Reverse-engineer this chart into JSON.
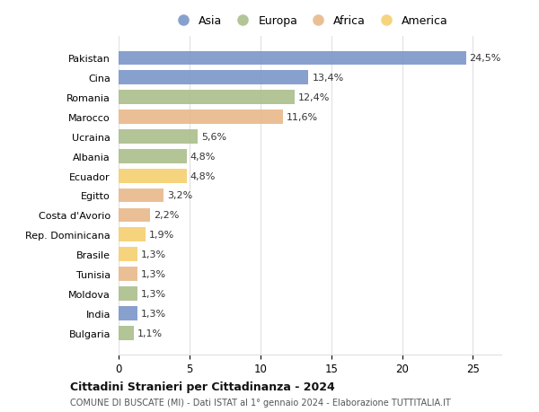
{
  "countries": [
    "Pakistan",
    "Cina",
    "Romania",
    "Marocco",
    "Ucraina",
    "Albania",
    "Ecuador",
    "Egitto",
    "Costa d'Avorio",
    "Rep. Dominicana",
    "Brasile",
    "Tunisia",
    "Moldova",
    "India",
    "Bulgaria"
  ],
  "values": [
    24.5,
    13.4,
    12.4,
    11.6,
    5.6,
    4.8,
    4.8,
    3.2,
    2.2,
    1.9,
    1.3,
    1.3,
    1.3,
    1.3,
    1.1
  ],
  "labels": [
    "24,5%",
    "13,4%",
    "12,4%",
    "11,6%",
    "5,6%",
    "4,8%",
    "4,8%",
    "3,2%",
    "2,2%",
    "1,9%",
    "1,3%",
    "1,3%",
    "1,3%",
    "1,3%",
    "1,1%"
  ],
  "continents": [
    "Asia",
    "Asia",
    "Europa",
    "Africa",
    "Europa",
    "Europa",
    "America",
    "Africa",
    "Africa",
    "America",
    "America",
    "Africa",
    "Europa",
    "Asia",
    "Europa"
  ],
  "colors": {
    "Asia": "#7b96c8",
    "Europa": "#abbe8c",
    "Africa": "#e8b88a",
    "America": "#f5d070"
  },
  "title": "Cittadini Stranieri per Cittadinanza - 2024",
  "subtitle": "COMUNE DI BUSCATE (MI) - Dati ISTAT al 1° gennaio 2024 - Elaborazione TUTTITALIA.IT",
  "xlim": [
    0,
    27
  ],
  "background_color": "#ffffff",
  "plot_bg": "#ffffff",
  "grid_color": "#e0e0e0"
}
